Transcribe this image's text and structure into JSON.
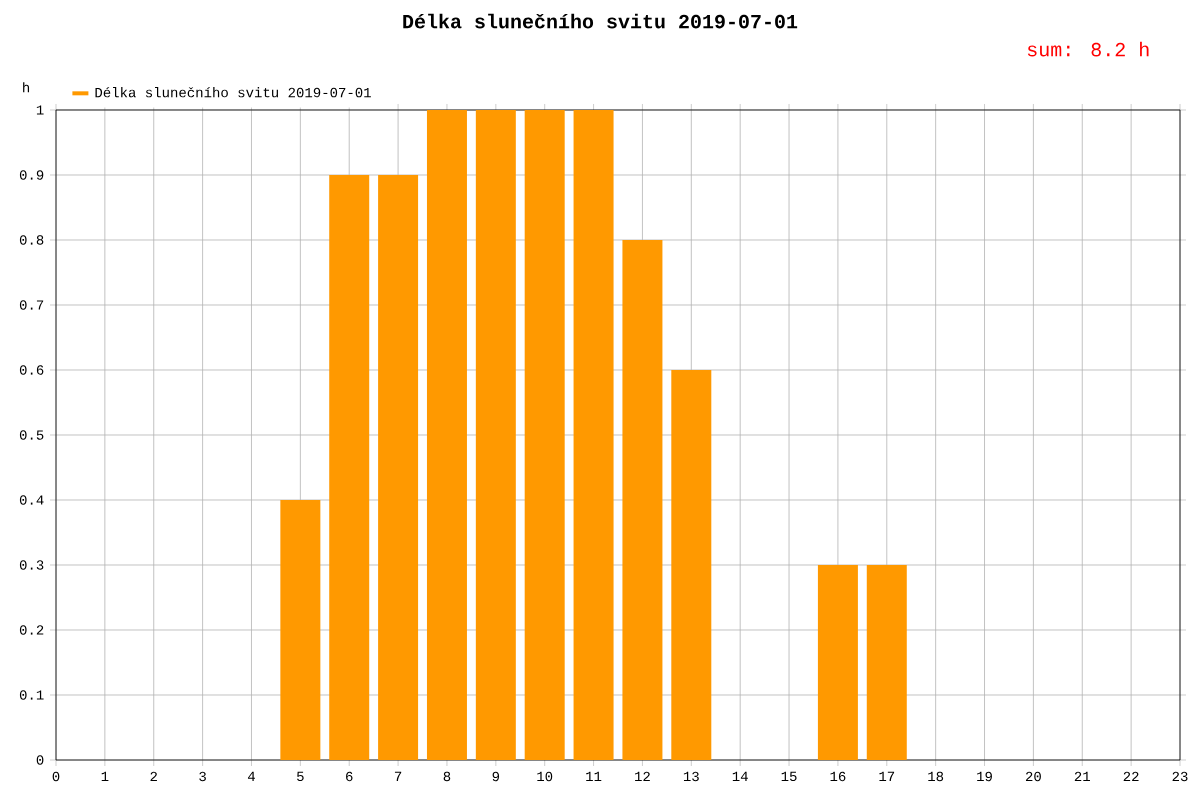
{
  "chart_data": {
    "type": "bar",
    "title": "Délka slunečního svitu 2019-07-01",
    "ylabel": "h",
    "annotations": [
      "sum: 8.2 h"
    ],
    "x": [
      5,
      6,
      7,
      8,
      9,
      10,
      11,
      12,
      13,
      14,
      15,
      16,
      17
    ],
    "series": [
      {
        "name": "Délka slunečního svitu 2019-07-01",
        "color": "#ff9900",
        "values": [
          0.4,
          0.9,
          0.9,
          1,
          1,
          1,
          1,
          0.8,
          0.6,
          0,
          0,
          0.3,
          0.3
        ]
      }
    ],
    "xlim": [
      0,
      23
    ],
    "xticks": [
      0,
      1,
      2,
      3,
      4,
      5,
      6,
      7,
      8,
      9,
      10,
      11,
      12,
      13,
      14,
      15,
      16,
      17,
      18,
      19,
      20,
      21,
      22,
      23
    ],
    "ylim": [
      0,
      1
    ],
    "yticks": [
      0,
      0.1,
      0.2,
      0.3,
      0.4,
      0.5,
      0.6,
      0.7,
      0.8,
      0.9,
      1
    ],
    "grid": true,
    "legend": "top left"
  }
}
